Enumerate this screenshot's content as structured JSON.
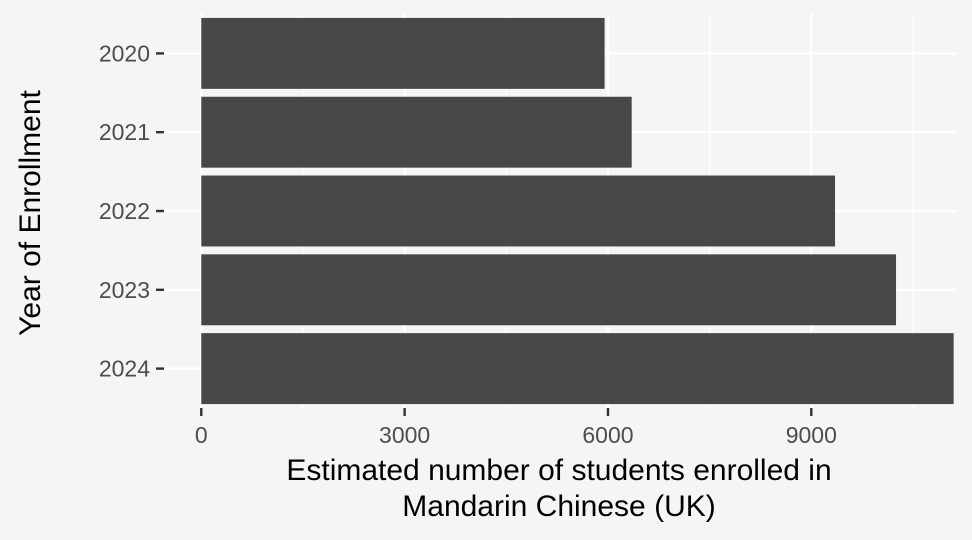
{
  "chart_data": {
    "type": "bar",
    "orientation": "horizontal",
    "categories": [
      "2020",
      "2021",
      "2022",
      "2023",
      "2024"
    ],
    "values": [
      5950,
      6350,
      9350,
      10250,
      11100
    ],
    "xlabel_lines": [
      "Estimated number of students enrolled in",
      "Mandarin Chinese (UK)"
    ],
    "ylabel": "Year of Enrollment",
    "x_ticks": [
      "0",
      "3000",
      "6000",
      "9000"
    ],
    "xlim": [
      -550,
      11120
    ],
    "grid": true,
    "legend": "none",
    "colors": {
      "background": "#f5f5f5",
      "bar": "#474747",
      "grid": "#ffffff",
      "tick_text": "#4d4d4d",
      "title_text": "#000000"
    }
  }
}
